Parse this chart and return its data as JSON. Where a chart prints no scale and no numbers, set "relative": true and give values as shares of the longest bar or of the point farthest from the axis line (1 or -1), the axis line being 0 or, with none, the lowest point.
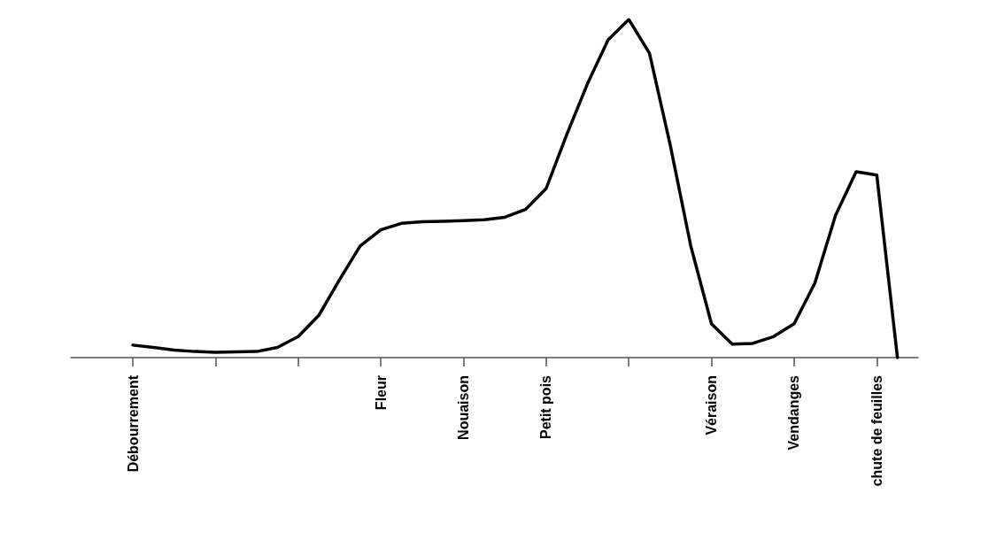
{
  "chart_data": {
    "type": "line",
    "relative": true,
    "marker": "none",
    "categories": [
      null,
      null,
      null,
      "Débourrement",
      null,
      null,
      null,
      null,
      null,
      null,
      null,
      null,
      null,
      null,
      null,
      "Fleur",
      null,
      null,
      null,
      "Nouaison",
      null,
      null,
      null,
      "Petit pois",
      null,
      null,
      null,
      null,
      null,
      null,
      null,
      "Véraison",
      null,
      null,
      null,
      "Vendanges",
      null,
      null,
      null,
      "chute de feuilles",
      null,
      null
    ],
    "series": [
      {
        "color": "#000000",
        "values": [
          null,
          null,
          null,
          0.037,
          0.03,
          0.022,
          0.018,
          0.016,
          0.017,
          0.018,
          0.03,
          0.062,
          0.125,
          0.23,
          0.33,
          0.378,
          0.397,
          0.402,
          0.403,
          0.405,
          0.408,
          0.415,
          0.438,
          0.5,
          0.66,
          0.81,
          0.94,
          1,
          0.9,
          0.63,
          0.33,
          0.1,
          0.04,
          0.042,
          0.062,
          0.1,
          0.22,
          0.42,
          0.55,
          0.54,
          0,
          null
        ]
      }
    ]
  }
}
